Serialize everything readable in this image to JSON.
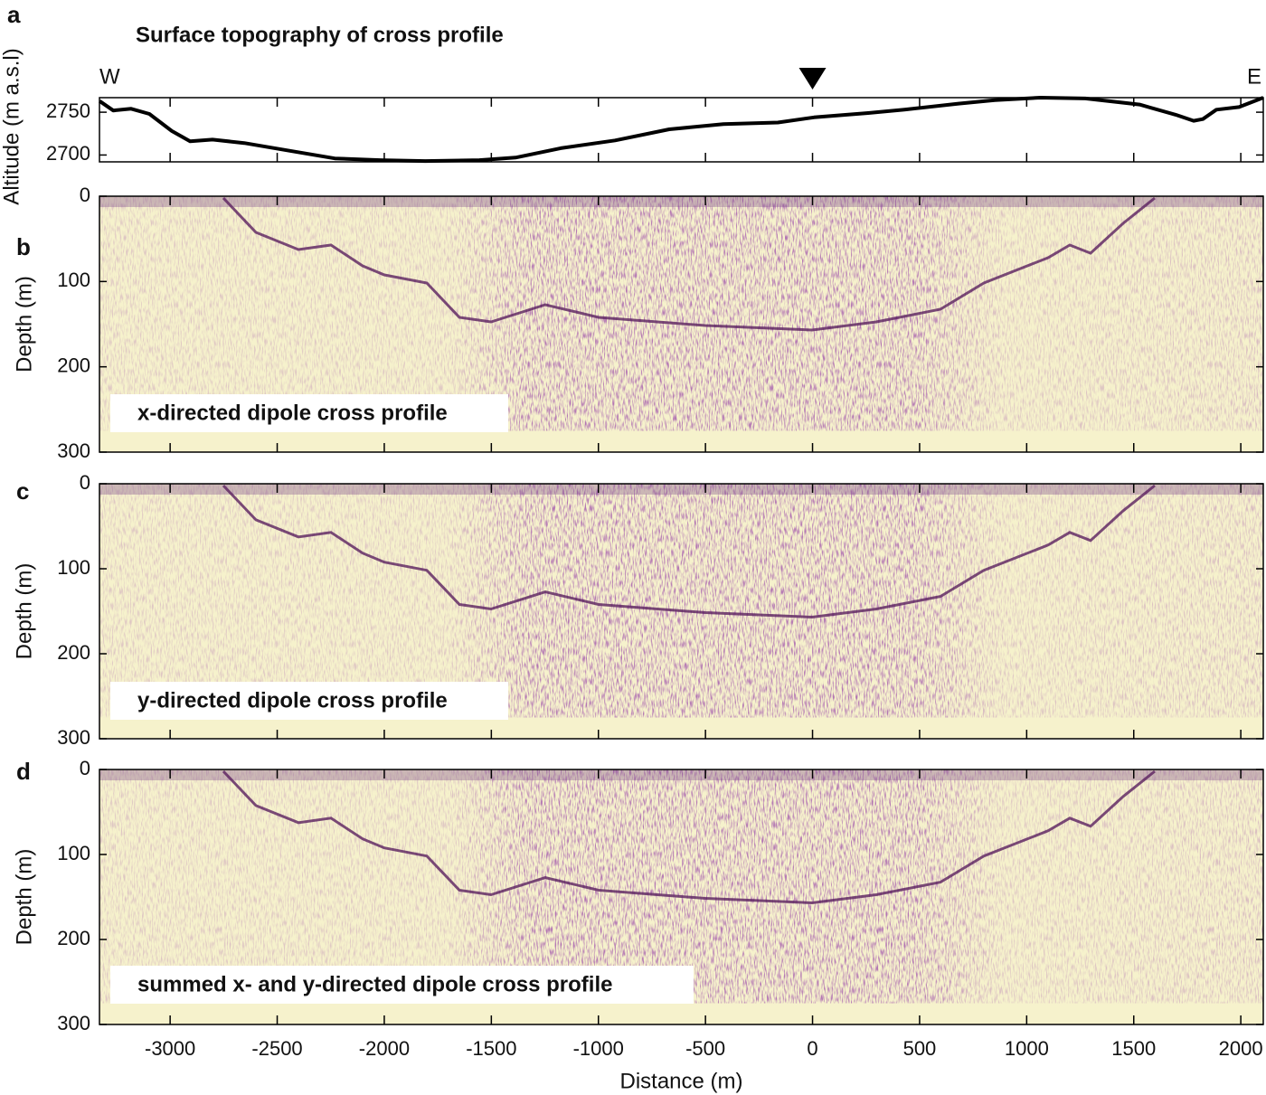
{
  "chart_data": [
    {
      "type": "line",
      "panel": "a",
      "title": "Surface topography of cross profile",
      "annotations": [
        "W",
        "E"
      ],
      "ylabel": "Altitude (m a.s.l)",
      "color": "#000000",
      "x": [
        -3329,
        -3266,
        -3182,
        -3097,
        -2992,
        -2907,
        -2802,
        -2654,
        -2443,
        -2231,
        -2020,
        -1809,
        -1556,
        -1387,
        -1176,
        -922,
        -669,
        -416,
        -162,
        7,
        260,
        429,
        682,
        851,
        1063,
        1274,
        1527,
        1696,
        1780,
        1823,
        1886,
        1992,
        2105
      ],
      "values": [
        2763,
        2752,
        2754,
        2748,
        2728,
        2716,
        2718,
        2714,
        2705,
        2696,
        2694,
        2693,
        2694,
        2697,
        2708,
        2717,
        2730,
        2736,
        2738,
        2744,
        2749,
        2753,
        2760,
        2764,
        2767,
        2766,
        2759,
        2747,
        2740,
        2742,
        2753,
        2756,
        2767
      ],
      "marker_x": 0,
      "xlim": [
        -3330,
        2105
      ],
      "ylim": [
        2692,
        2767
      ],
      "yticks": [
        2700,
        2750
      ]
    },
    {
      "type": "image",
      "panel": "b",
      "caption": "x-directed dipole cross profile",
      "ylabel": "Depth (m)",
      "xlim": [
        -3330,
        2105
      ],
      "ylim": [
        300,
        0
      ],
      "yticks": [
        0,
        100,
        200,
        300
      ]
    },
    {
      "type": "image",
      "panel": "c",
      "caption": "y-directed dipole cross profile",
      "ylabel": "Depth (m)",
      "xlim": [
        -3330,
        2105
      ],
      "ylim": [
        300,
        0
      ],
      "yticks": [
        0,
        100,
        200,
        300
      ]
    },
    {
      "type": "image",
      "panel": "d",
      "caption": "summed x- and y-directed dipole cross profile",
      "ylabel": "Depth (m)",
      "xlabel": "Distance (m)",
      "xlim": [
        -3330,
        2105
      ],
      "ylim": [
        300,
        0
      ],
      "yticks": [
        0,
        100,
        200,
        300
      ],
      "xticks": [
        -3000,
        -2500,
        -2000,
        -1500,
        -1000,
        -500,
        0,
        500,
        1000,
        1500,
        2000
      ]
    }
  ]
}
